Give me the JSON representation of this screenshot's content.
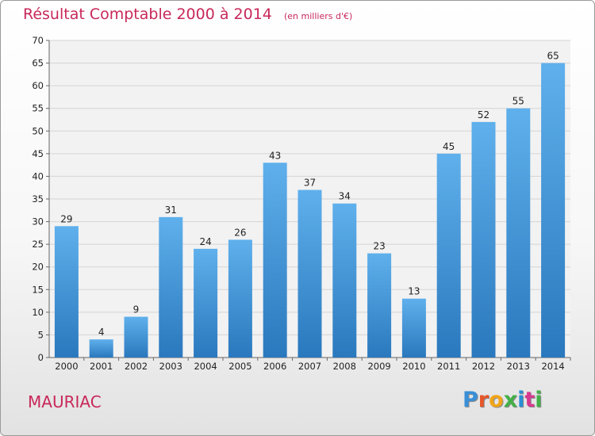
{
  "chart_data": {
    "type": "bar",
    "title": "Résultat Comptable 2000 à 2014",
    "subtitle": "(en milliers d'€)",
    "categories": [
      "2000",
      "2001",
      "2002",
      "2003",
      "2004",
      "2005",
      "2006",
      "2007",
      "2008",
      "2009",
      "2010",
      "2011",
      "2012",
      "2013",
      "2014"
    ],
    "values": [
      29,
      4,
      9,
      31,
      24,
      26,
      43,
      37,
      34,
      23,
      13,
      45,
      52,
      55,
      65
    ],
    "ylim": [
      0,
      70
    ],
    "yticks": [
      0,
      5,
      10,
      15,
      20,
      25,
      30,
      35,
      40,
      45,
      50,
      55,
      60,
      65,
      70
    ],
    "grid": true,
    "bar_color": "#4a9ee0"
  },
  "location": "MAURIAC",
  "brand": {
    "letters": [
      "P",
      "r",
      "o",
      "x",
      "i",
      "t",
      "i"
    ],
    "colors": [
      "#3a8fd6",
      "#e6572a",
      "#f2a51a",
      "#43b047",
      "#2a8fd6",
      "#d63a8f",
      "#43b047"
    ]
  }
}
